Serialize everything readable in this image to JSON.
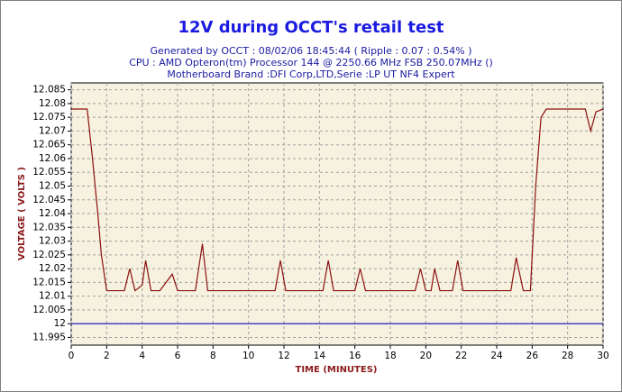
{
  "chart_data": {
    "type": "line",
    "title": "12V during OCCT's retail test",
    "subtitle": [
      "Generated by OCCT : 08/02/06 18:45:44 ( Ripple : 0.07 : 0.54% )",
      "CPU : AMD Opteron(tm) Processor 144    @ 2250.66 MHz FSB 250.07MHz ()",
      "Motherboard Brand :DFI Corp,LTD,Serie :LP UT NF4 Expert"
    ],
    "xlabel": "TIME (MINUTES)",
    "ylabel": "VOLTAGE ( VOLTS )",
    "xlim": [
      0,
      30
    ],
    "xticks": [
      0,
      2,
      4,
      6,
      8,
      10,
      12,
      14,
      16,
      18,
      20,
      22,
      24,
      26,
      28,
      30
    ],
    "ylim": [
      11.9922,
      12.0875
    ],
    "yticks": [
      11.995,
      12,
      12.005,
      12.01,
      12.015,
      12.02,
      12.025,
      12.03,
      12.035,
      12.04,
      12.045,
      12.05,
      12.055,
      12.06,
      12.065,
      12.07,
      12.075,
      12.08,
      12.085
    ],
    "grid": true,
    "series": [
      {
        "color": "#8b1010",
        "x": [
          0,
          0.9,
          1.2,
          1.5,
          1.7,
          2,
          3,
          3.3,
          3.6,
          4.0,
          4.2,
          4.5,
          5.0,
          5.7,
          6.0,
          7.0,
          7.4,
          7.7,
          11.5,
          11.8,
          12.1,
          14.2,
          14.5,
          14.8,
          16,
          16.3,
          16.6,
          19.4,
          19.7,
          20.0,
          20.3,
          20.5,
          20.8,
          21.5,
          21.8,
          22.1,
          24.8,
          25.1,
          25.5,
          25.9,
          26.2,
          26.5,
          26.8,
          29.0,
          29.3,
          29.6,
          30
        ],
        "values": [
          12.078,
          12.078,
          12.06,
          12.04,
          12.025,
          12.012,
          12.012,
          12.02,
          12.012,
          12.014,
          12.023,
          12.012,
          12.012,
          12.018,
          12.012,
          12.012,
          12.029,
          12.012,
          12.012,
          12.023,
          12.012,
          12.012,
          12.023,
          12.012,
          12.012,
          12.02,
          12.012,
          12.012,
          12.02,
          12.012,
          12.012,
          12.02,
          12.012,
          12.012,
          12.023,
          12.012,
          12.012,
          12.024,
          12.012,
          12.012,
          12.05,
          12.075,
          12.078,
          12.078,
          12.07,
          12.077,
          12.078
        ]
      },
      {
        "color": "#1010c8",
        "x": [
          0,
          30
        ],
        "values": [
          12,
          12
        ]
      }
    ]
  }
}
